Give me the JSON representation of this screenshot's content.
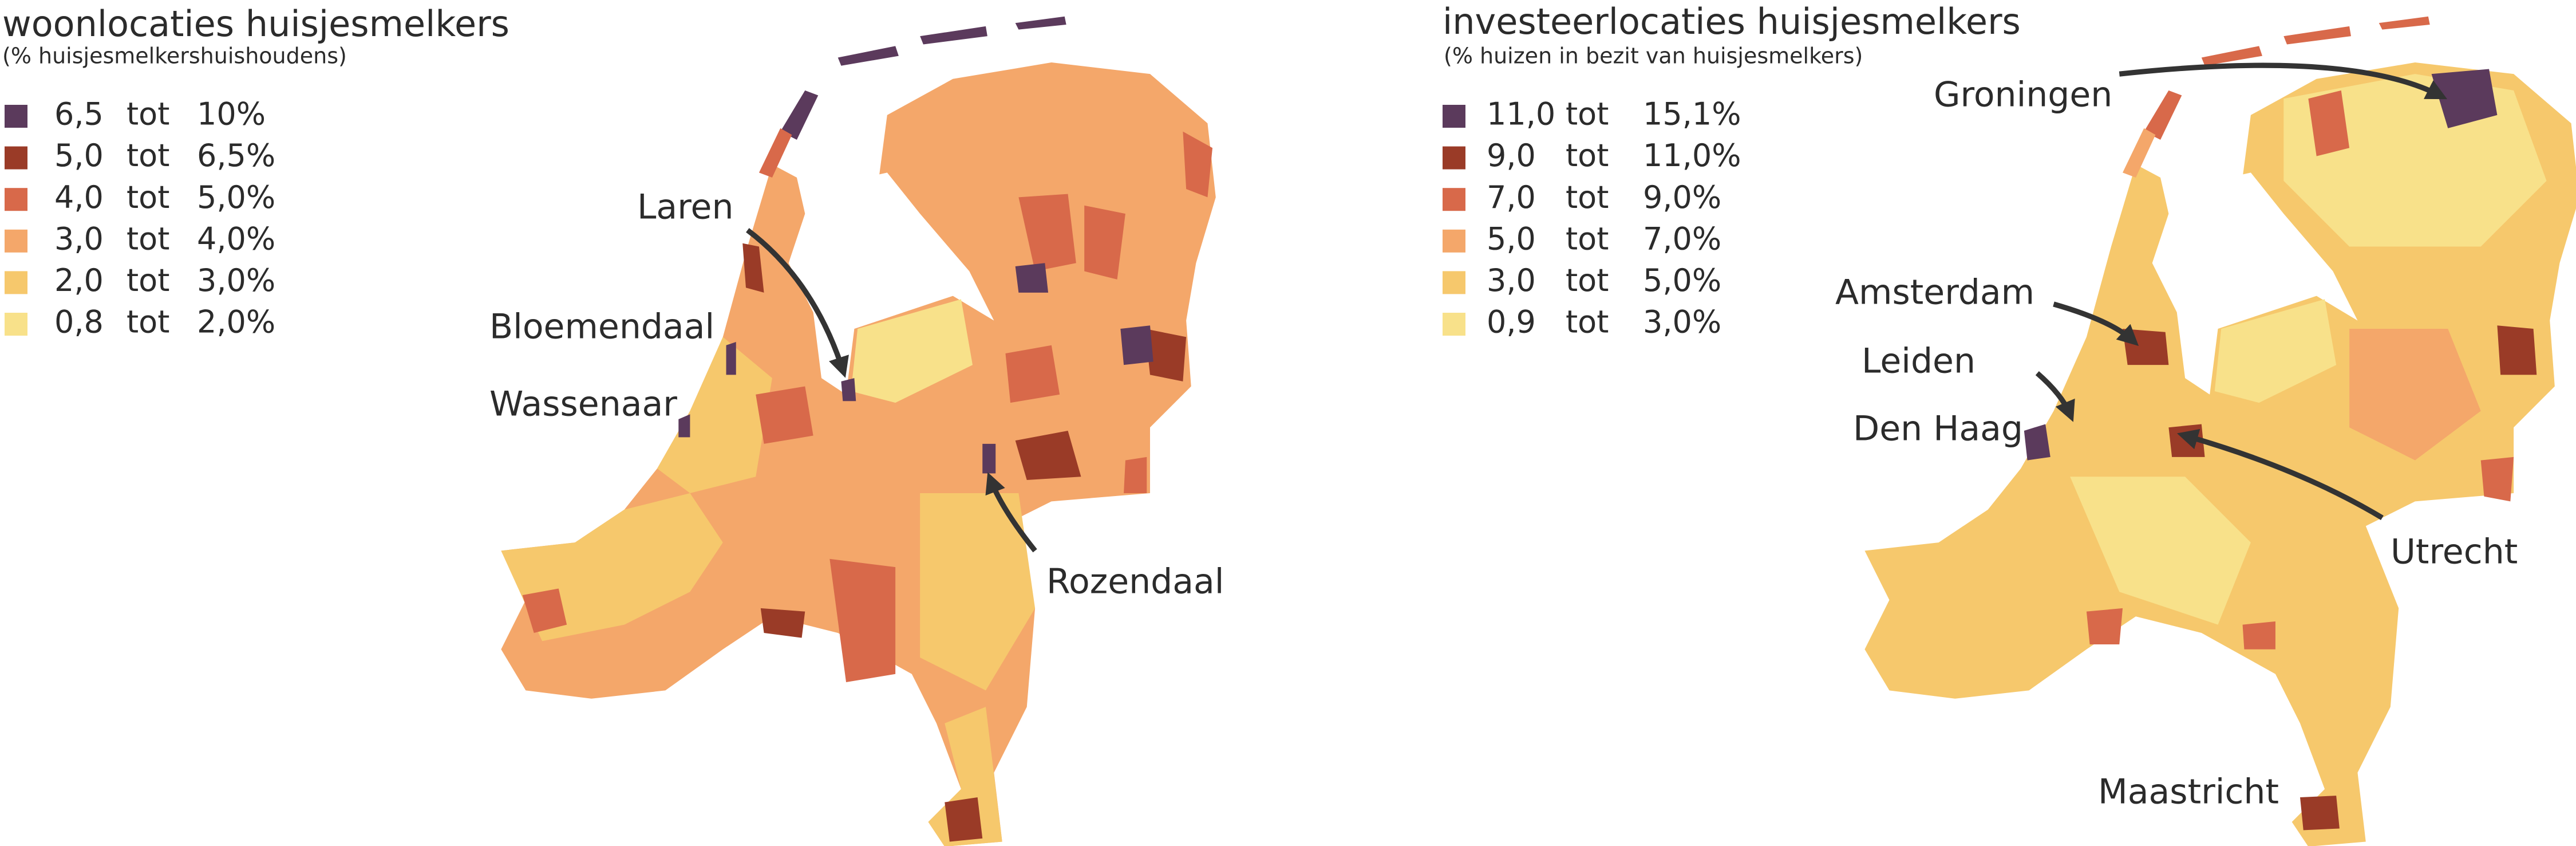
{
  "panels": [
    {
      "title": "woonlocaties huisjesmelkers",
      "subtitle": "(% huisjesmelkershuishoudens)",
      "legend": [
        {
          "color": "#5b3a5c",
          "from": "6,5",
          "word": "tot",
          "to": "10%"
        },
        {
          "color": "#9a3b27",
          "from": "5,0",
          "word": "tot",
          "to": "6,5%"
        },
        {
          "color": "#d8694a",
          "from": "4,0",
          "word": "tot",
          "to": "5,0%"
        },
        {
          "color": "#f4a76a",
          "from": "3,0",
          "word": "tot",
          "to": "4,0%"
        },
        {
          "color": "#f6c86c",
          "from": "2,0",
          "word": "tot",
          "to": "3,0%"
        },
        {
          "color": "#f8e18a",
          "from": "0,8",
          "word": "tot",
          "to": "2,0%"
        }
      ],
      "places": [
        "Laren",
        "Bloemendaal",
        "Wassenaar",
        "Rozendaal"
      ]
    },
    {
      "title": "investeerlocaties huisjesmelkers",
      "subtitle": "(% huizen in bezit van huisjesmelkers)",
      "legend": [
        {
          "color": "#5b3a5c",
          "from": "11,0",
          "word": "tot",
          "to": "15,1%"
        },
        {
          "color": "#9a3b27",
          "from": "9,0",
          "word": "tot",
          "to": "11,0%"
        },
        {
          "color": "#d8694a",
          "from": "7,0",
          "word": "tot",
          "to": "9,0%"
        },
        {
          "color": "#f4a76a",
          "from": "5,0",
          "word": "tot",
          "to": "7,0%"
        },
        {
          "color": "#f6c86c",
          "from": "3,0",
          "word": "tot",
          "to": "5,0%"
        },
        {
          "color": "#f8e18a",
          "from": "0,9",
          "word": "tot",
          "to": "3,0%"
        }
      ],
      "places": [
        "Groningen",
        "Amsterdam",
        "Leiden",
        "Den Haag",
        "Utrecht",
        "Maastricht"
      ]
    }
  ]
}
